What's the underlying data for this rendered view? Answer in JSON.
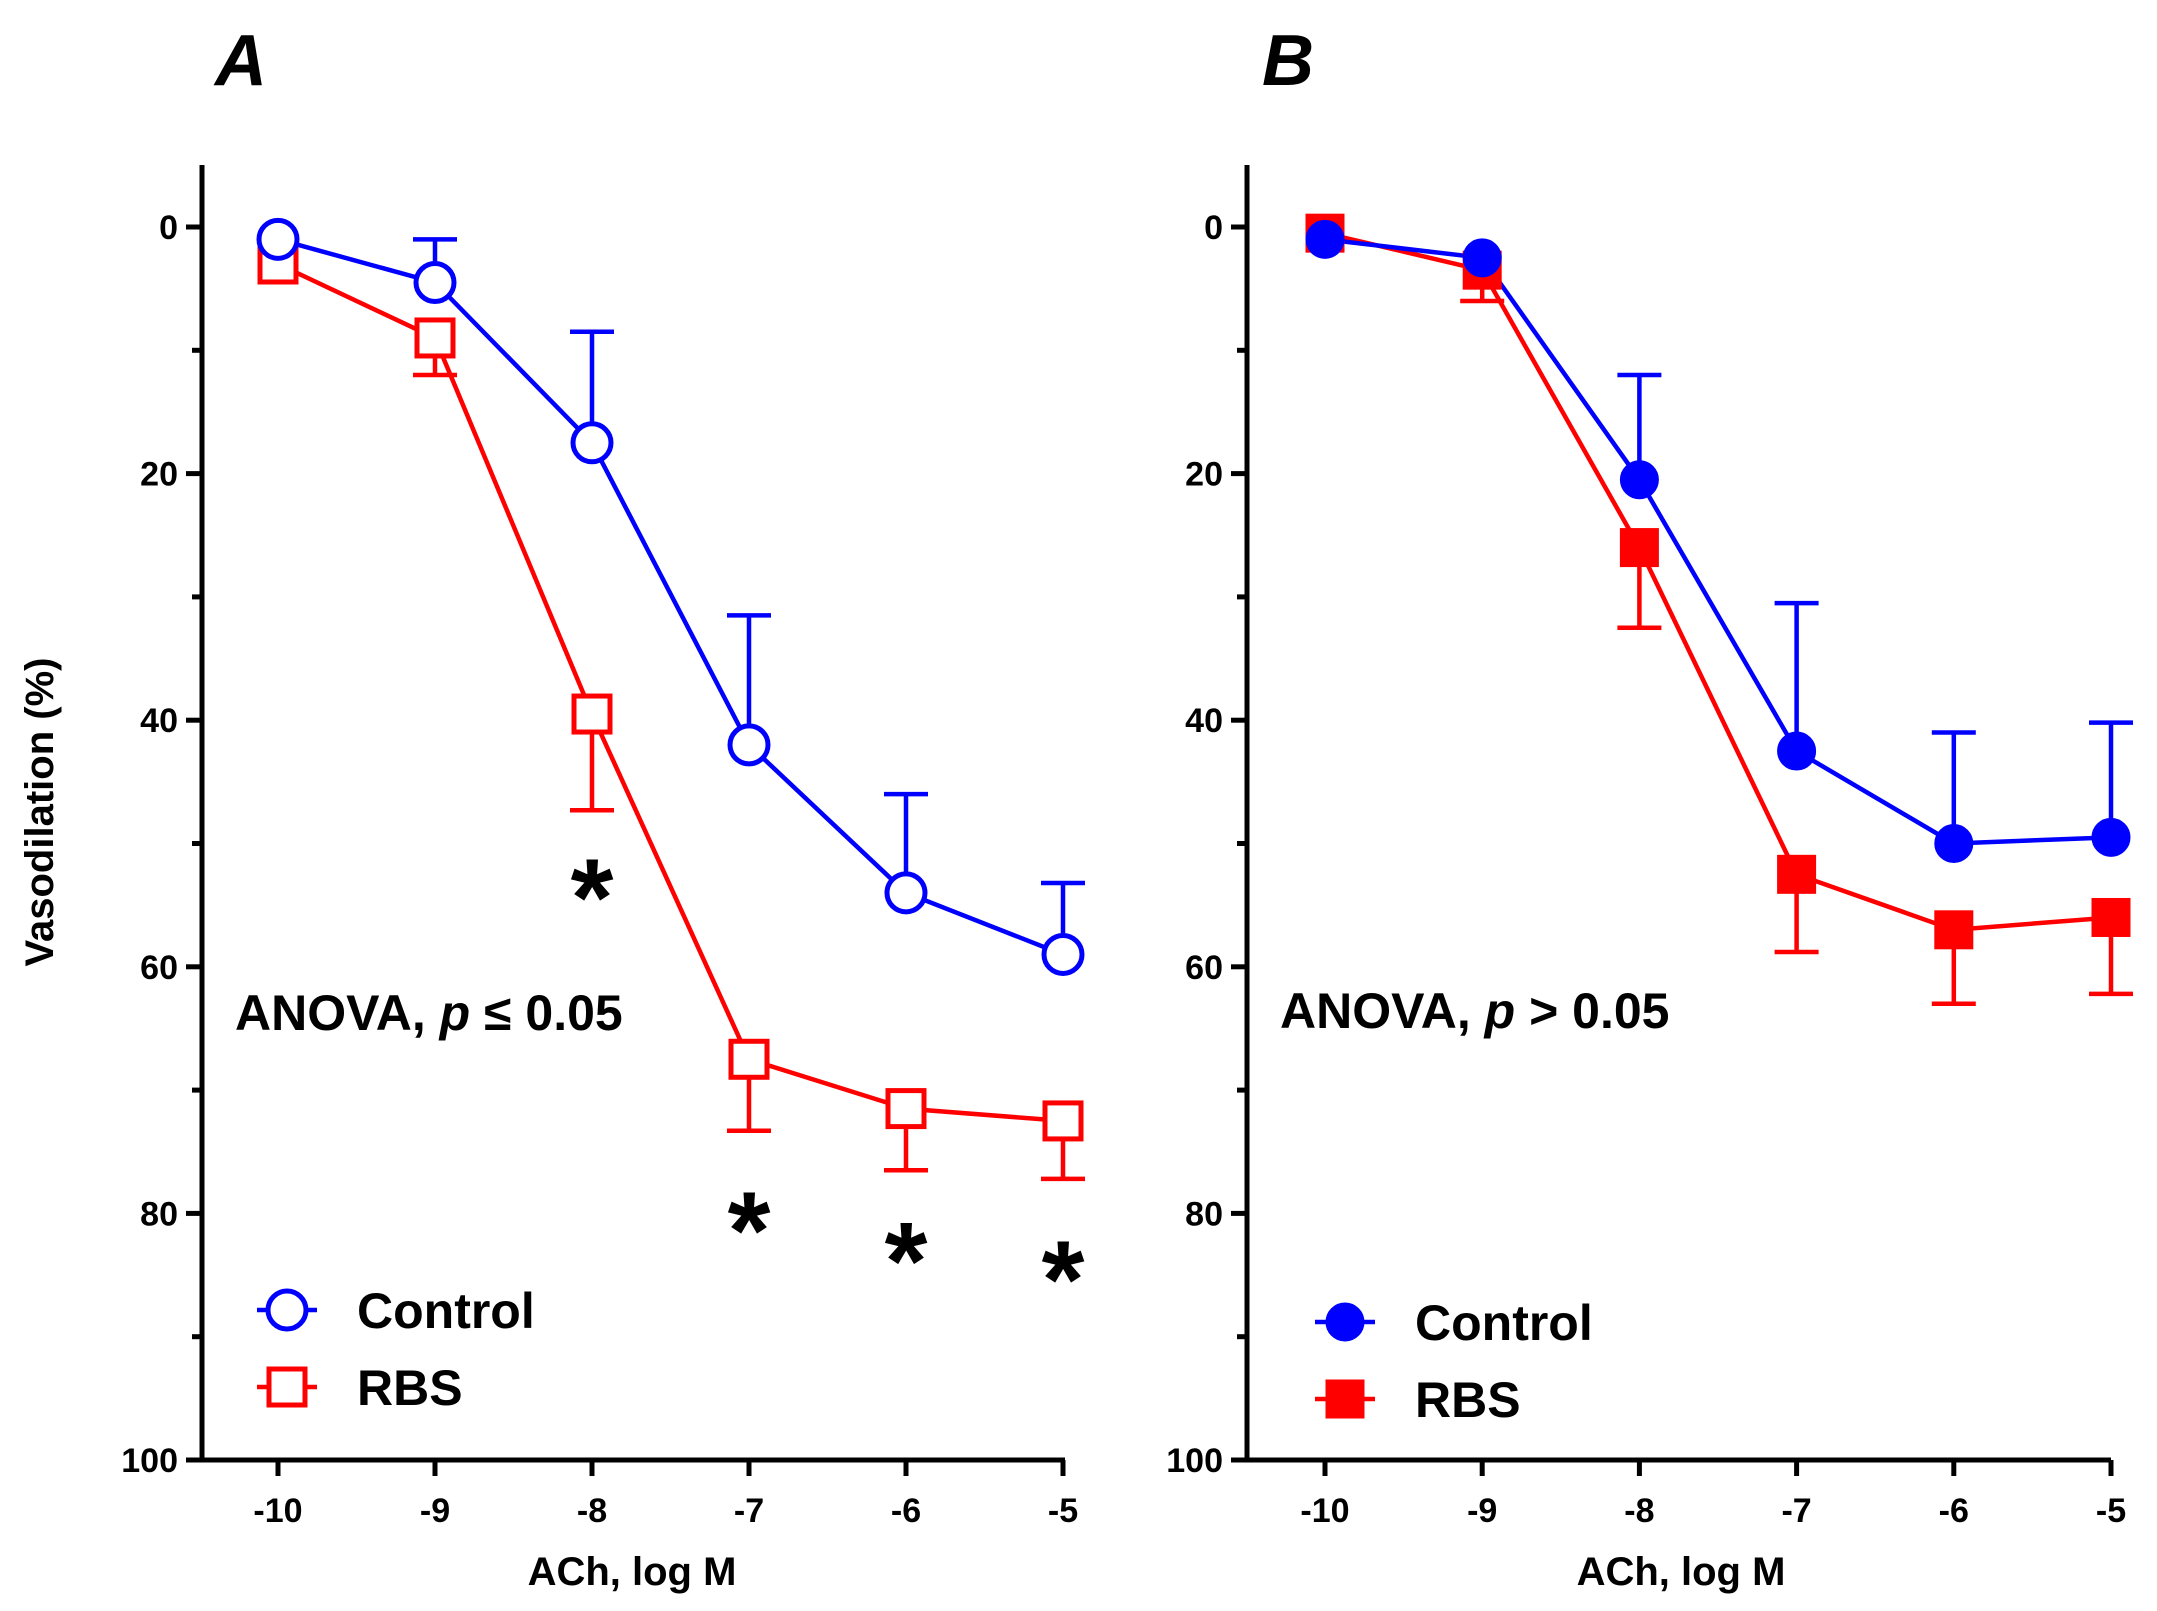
{
  "chart_data": [
    {
      "type": "line",
      "panel_label": "A",
      "xlabel": "ACh, log M",
      "ylabel": "Vasodilation (%)",
      "x": [
        -10,
        -9,
        -8,
        -7,
        -6,
        -5
      ],
      "x_tick_labels": [
        "-10",
        "-9",
        "-8",
        "-7",
        "-6",
        "-5"
      ],
      "xlim": [
        -10.5,
        -5
      ],
      "ylim": [
        100,
        -5
      ],
      "y_ticks": [
        0,
        20,
        40,
        60,
        80,
        100
      ],
      "y_tick_labels": [
        "0",
        "20",
        "40",
        "60",
        "80",
        "100"
      ],
      "series": [
        {
          "name": "Control",
          "color": "#0000ff",
          "marker": "open-circle",
          "values": [
            1,
            4.5,
            17.5,
            42,
            54,
            59
          ],
          "error": [
            0,
            3.5,
            9,
            10.5,
            8,
            5.8
          ],
          "error_direction": "up"
        },
        {
          "name": "RBS",
          "color": "#ff0000",
          "marker": "open-square",
          "values": [
            3,
            9,
            39.5,
            67.5,
            71.5,
            72.5
          ],
          "error": [
            0,
            3,
            7.8,
            5.8,
            5,
            4.7
          ],
          "error_direction": "down"
        }
      ],
      "annotation": {
        "prefix": "ANOVA, ",
        "p": "p",
        "suffix": " ≤ 0.05"
      },
      "significance": [
        {
          "x": -8,
          "y": 53,
          "label": "*"
        },
        {
          "x": -7,
          "y": 80,
          "label": "*"
        },
        {
          "x": -6,
          "y": 82.5,
          "label": "*"
        },
        {
          "x": -5,
          "y": 84,
          "label": "*"
        }
      ],
      "legend": {
        "position": "bottom-left",
        "entries": [
          "Control",
          "RBS"
        ]
      }
    },
    {
      "type": "line",
      "panel_label": "B",
      "xlabel": "ACh, log M",
      "ylabel": "",
      "x": [
        -10,
        -9,
        -8,
        -7,
        -6,
        -5
      ],
      "x_tick_labels": [
        "-10",
        "-9",
        "-8",
        "-7",
        "-6",
        "-5"
      ],
      "xlim": [
        -10.5,
        -5
      ],
      "ylim": [
        100,
        -5
      ],
      "y_ticks": [
        0,
        20,
        40,
        60,
        80,
        100
      ],
      "y_tick_labels": [
        "0",
        "20",
        "40",
        "60",
        "80",
        "100"
      ],
      "series": [
        {
          "name": "Control",
          "color": "#0000ff",
          "marker": "filled-circle",
          "values": [
            1,
            2.5,
            20.5,
            42.5,
            50,
            49.5
          ],
          "error": [
            0,
            0,
            8.5,
            12,
            9,
            9.3
          ],
          "error_direction": "up"
        },
        {
          "name": "RBS",
          "color": "#ff0000",
          "marker": "filled-square",
          "values": [
            0.5,
            3.5,
            26,
            52.5,
            57,
            56
          ],
          "error": [
            0,
            2.5,
            6.5,
            6.3,
            6,
            6.2
          ],
          "error_direction": "down"
        }
      ],
      "annotation": {
        "prefix": "ANOVA, ",
        "p": "p",
        "suffix": " > 0.05"
      },
      "significance": [],
      "legend": {
        "position": "bottom-left",
        "entries": [
          "Control",
          "RBS"
        ]
      }
    }
  ]
}
